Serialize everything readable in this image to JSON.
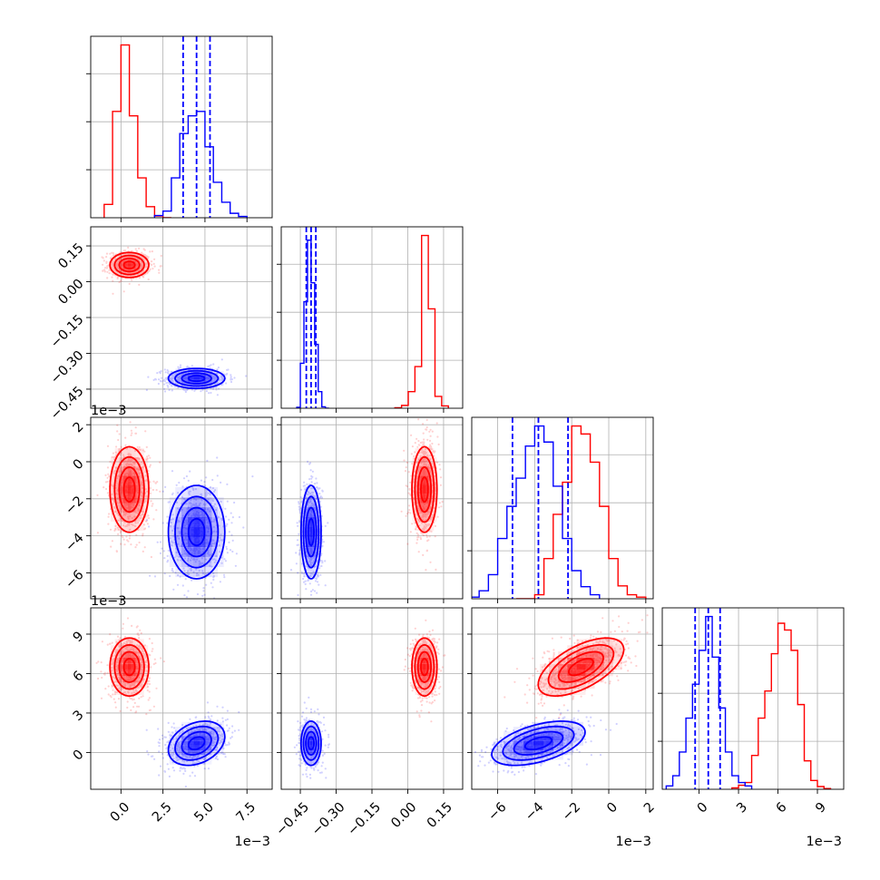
{
  "chart_data": {
    "type": "corner",
    "colors": {
      "series_a": "#ff0000",
      "series_b": "#0000ff"
    },
    "grid": true,
    "parameters": [
      {
        "range": [
          -1.8,
          9.0
        ],
        "ticks": [
          0.0,
          2.5,
          5.0,
          7.5
        ],
        "tick_labels": [
          "0.0",
          "2.5",
          "5.0",
          "7.5"
        ],
        "offset_label": "1e−3"
      },
      {
        "range": [
          -0.53,
          0.23
        ],
        "ticks": [
          -0.45,
          -0.3,
          -0.15,
          0.0,
          0.15
        ],
        "tick_labels": [
          "−0.45",
          "−0.30",
          "−0.15",
          "0.00",
          "0.15"
        ],
        "offset_label": ""
      },
      {
        "range": [
          -7.4,
          2.4
        ],
        "ticks": [
          -6,
          -4,
          -2,
          0,
          2
        ],
        "tick_labels": [
          "−6",
          "−4",
          "−2",
          "0",
          "2"
        ],
        "offset_label": "1e−3"
      },
      {
        "range": [
          -2.8,
          11.0
        ],
        "ticks": [
          0,
          3,
          6,
          9
        ],
        "tick_labels": [
          "0",
          "3",
          "6",
          "9"
        ],
        "offset_label": "1e−3"
      }
    ],
    "blue_quantiles": [
      [
        3.7,
        4.5,
        5.3
      ],
      [
        -0.425,
        -0.405,
        -0.385
      ],
      [
        -5.2,
        -3.8,
        -2.2
      ],
      [
        -0.3,
        0.7,
        1.6
      ]
    ],
    "series": [
      {
        "color": "#ff0000",
        "mean": [
          0.5,
          0.07,
          -1.5,
          6.5
        ],
        "std": [
          0.55,
          0.025,
          1.1,
          1.05
        ],
        "corr": {
          "2-3": 0.6
        },
        "hist": [
          {
            "bin_width": 0.5,
            "centers": [
              -0.75,
              -0.25,
              0.25,
              0.75,
              1.25,
              1.75,
              2.25,
              2.75
            ],
            "counts": [
              0.3,
              2.4,
              3.9,
              2.3,
              0.9,
              0.25,
              0.04,
              0.0
            ]
          },
          {
            "bin_width": 0.028,
            "centers": [
              -0.04,
              -0.012,
              0.016,
              0.044,
              0.072,
              0.1,
              0.128,
              0.156
            ],
            "counts": [
              0.01,
              0.06,
              0.35,
              0.88,
              3.65,
              2.1,
              0.25,
              0.05
            ]
          },
          {
            "bin_width": 0.5,
            "centers": [
              -4.75,
              -4.25,
              -3.75,
              -3.25,
              -2.75,
              -2.25,
              -1.75,
              -1.25,
              -0.75,
              -0.25,
              0.25,
              0.75,
              1.25,
              1.75
            ],
            "counts": [
              0.0,
              0.0,
              0.05,
              0.5,
              1.05,
              1.45,
              2.15,
              2.05,
              1.7,
              1.15,
              0.5,
              0.16,
              0.05,
              0.02
            ]
          },
          {
            "bin_width": 0.5,
            "centers": [
              2.75,
              3.25,
              3.75,
              4.25,
              4.75,
              5.25,
              5.75,
              6.25,
              6.75,
              7.25,
              7.75,
              8.25,
              8.75,
              9.25,
              9.75
            ],
            "counts": [
              0.02,
              0.06,
              0.1,
              0.5,
              1.05,
              1.45,
              2.0,
              2.45,
              2.35,
              2.05,
              1.25,
              0.42,
              0.13,
              0.04,
              0.01
            ]
          }
        ]
      },
      {
        "color": "#0000ff",
        "mean": [
          4.5,
          -0.405,
          -3.8,
          0.7
        ],
        "std": [
          0.8,
          0.02,
          1.2,
          0.8
        ],
        "corr": {
          "2-3": 0.5,
          "0-3": 0.3
        },
        "hist": [
          {
            "bin_width": 0.5,
            "centers": [
              2.25,
              2.75,
              3.25,
              3.75,
              4.25,
              4.75,
              5.25,
              5.75,
              6.25,
              6.75,
              7.25
            ],
            "counts": [
              0.05,
              0.15,
              0.9,
              1.9,
              2.3,
              2.4,
              1.6,
              0.8,
              0.35,
              0.1,
              0.03
            ]
          },
          {
            "bin_width": 0.015,
            "centers": [
              -0.4575,
              -0.4425,
              -0.4275,
              -0.4125,
              -0.3975,
              -0.3825,
              -0.3675,
              -0.3525,
              -0.3375
            ],
            "counts": [
              0.02,
              0.95,
              2.25,
              3.55,
              2.65,
              1.35,
              0.35,
              0.03,
              0.0
            ]
          },
          {
            "bin_width": 0.5,
            "centers": [
              -7.25,
              -6.75,
              -6.25,
              -5.75,
              -5.25,
              -4.75,
              -4.25,
              -3.75,
              -3.25,
              -2.75,
              -2.25,
              -1.75,
              -1.25,
              -0.75
            ],
            "counts": [
              0.02,
              0.1,
              0.3,
              0.75,
              1.15,
              1.5,
              1.9,
              2.15,
              1.95,
              1.4,
              0.75,
              0.35,
              0.15,
              0.05
            ]
          },
          {
            "bin_width": 0.5,
            "centers": [
              -2.25,
              -1.75,
              -1.25,
              -0.75,
              -0.25,
              0.25,
              0.75,
              1.25,
              1.75,
              2.25,
              2.75,
              3.25,
              3.75
            ],
            "counts": [
              0.05,
              0.2,
              0.55,
              1.05,
              1.55,
              2.05,
              2.55,
              1.95,
              1.2,
              0.55,
              0.2,
              0.1,
              0.05
            ]
          }
        ]
      }
    ]
  }
}
